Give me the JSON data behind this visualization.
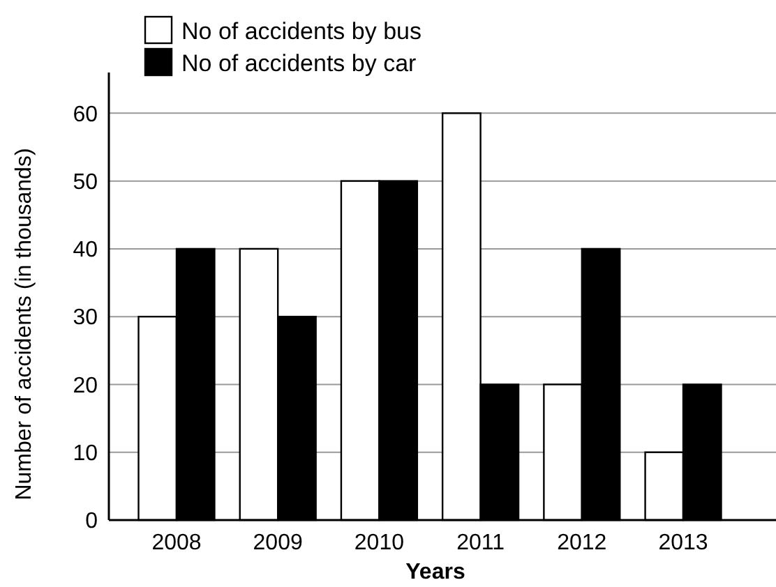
{
  "chart_data": {
    "type": "bar",
    "xlabel": "Years",
    "ylabel": "Number of accidents (in thousands)",
    "categories": [
      "2008",
      "2009",
      "2010",
      "2011",
      "2012",
      "2013"
    ],
    "series": [
      {
        "name": "No of accidents by bus",
        "color": "#ffffff",
        "values": [
          30,
          40,
          50,
          60,
          20,
          10
        ]
      },
      {
        "name": "No of accidents by car",
        "color": "#000000",
        "values": [
          40,
          30,
          50,
          20,
          40,
          20
        ]
      }
    ],
    "ylim": [
      0,
      66
    ],
    "yticks": [
      0,
      10,
      20,
      30,
      40,
      50,
      60
    ],
    "grid": "y",
    "legend": "top left"
  }
}
